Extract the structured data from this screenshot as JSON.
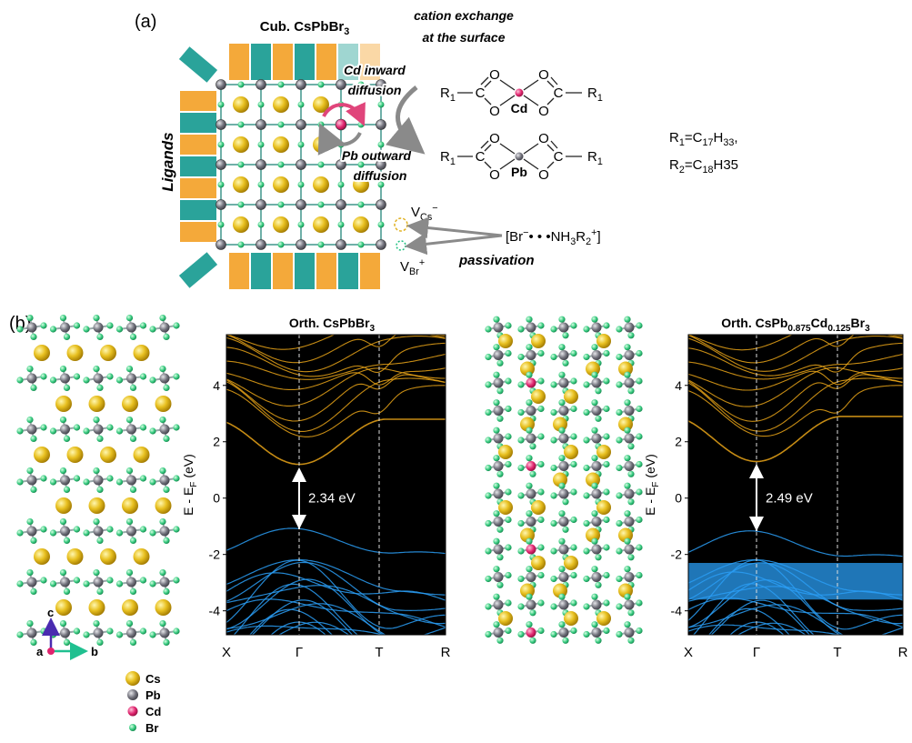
{
  "panel_a": {
    "label": "(a)",
    "title": [
      "Cub. CsPbBr",
      "3"
    ],
    "surface_note": [
      "cation exchange",
      "at the surface"
    ],
    "inward": [
      "Cd inward",
      "diffusion"
    ],
    "outward": [
      "Pb outward",
      "diffusion"
    ],
    "ligands": "Ligands",
    "oxygen": "O",
    "carbon": "C",
    "r1": [
      "R",
      "1"
    ],
    "complexes": [
      "Cd",
      "Pb"
    ],
    "r_defs": [
      [
        "R",
        "1",
        "=C",
        "17",
        "H",
        "33",
        ","
      ],
      [
        "R",
        "2",
        "=C",
        "18",
        "H",
        "35"
      ]
    ],
    "vacancies": [
      [
        "V",
        "Cs",
        "−"
      ],
      [
        "V",
        "Br",
        "+"
      ]
    ],
    "passivant": [
      "[Br",
      "−",
      "• • •NH",
      "3",
      "R",
      "2",
      "+",
      "]"
    ],
    "passivation": "passivation"
  },
  "panel_b": {
    "label": "(b)",
    "charts": [
      {
        "title": [
          "Orth. CsPbBr",
          "3"
        ],
        "ylabel": [
          "E - E",
          "F",
          " (eV)"
        ],
        "ylim": [
          -4.85,
          5.8
        ],
        "yticks": [
          -4,
          -2,
          0,
          2,
          4
        ],
        "kpoints": [
          "X",
          "Γ",
          "T",
          "R"
        ],
        "gap_label": "2.34 eV"
      },
      {
        "title": [
          "Orth. CsPb",
          "0.875",
          "Cd",
          "0.125",
          "Br",
          "3"
        ],
        "ylabel": [
          "E - E",
          "F",
          " (eV)"
        ],
        "ylim": [
          -4.85,
          5.8
        ],
        "yticks": [
          -4,
          -2,
          0,
          2,
          4
        ],
        "kpoints": [
          "X",
          "Γ",
          "T",
          "R"
        ],
        "gap_label": "2.49 eV"
      }
    ],
    "legend": [
      "Cs",
      "Pb",
      "Cd",
      "Br"
    ],
    "axes": [
      "a",
      "b",
      "c"
    ]
  }
}
